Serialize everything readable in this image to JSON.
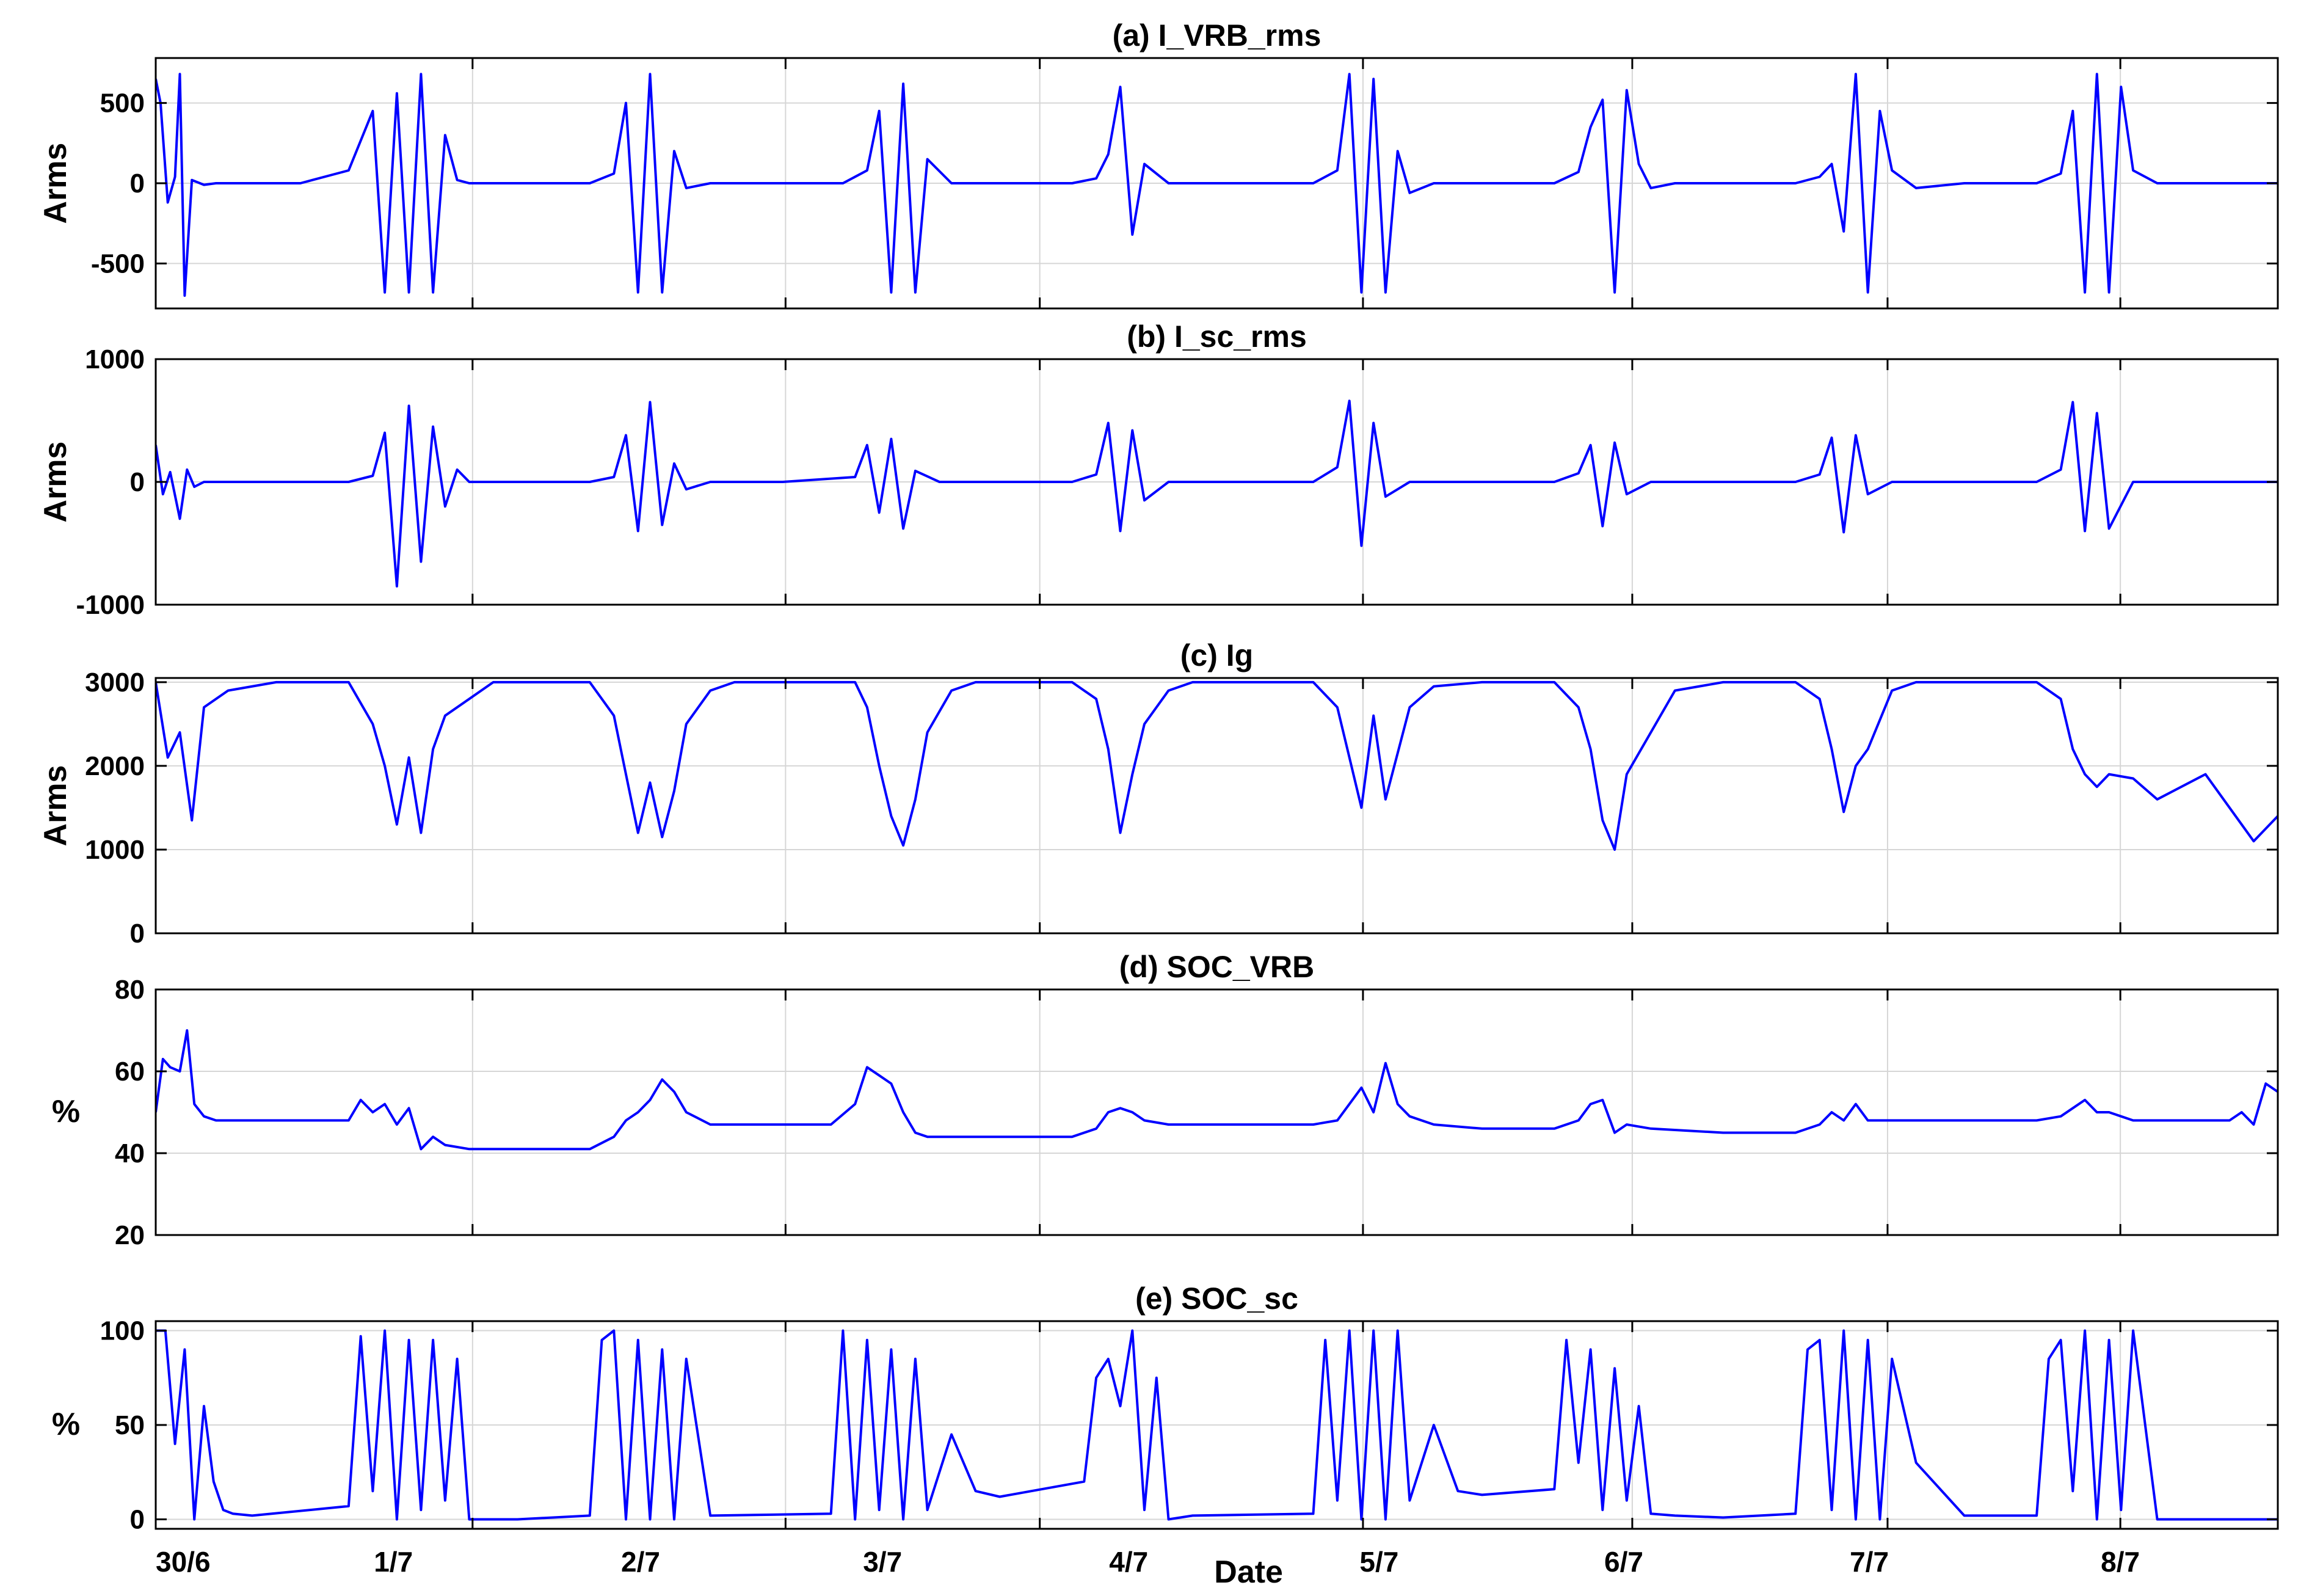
{
  "figure": {
    "xlabel": "Date",
    "x_tick_labels": [
      "30/6",
      "1/7",
      "2/7",
      "3/7",
      "4/7",
      "5/7",
      "6/7",
      "7/7",
      "8/7"
    ]
  },
  "colors": {
    "line": "#0000ff",
    "axes": "#000000",
    "grid": "#d6d6d6",
    "background": "#ffffff"
  },
  "chart_data": [
    {
      "type": "line",
      "title": "(a) I_VRB_rms",
      "ylabel": "Arms",
      "ylim": [
        -780,
        780
      ],
      "yticks": [
        -500,
        0,
        500
      ],
      "xlim": [
        0,
        8.8
      ],
      "grid": true,
      "signal": "oscillating current bursts clipped at about ±680 Arms, near zero between midday bursts",
      "series": [
        {
          "x": [
            0,
            0.02,
            0.05,
            0.08,
            0.1,
            0.12,
            0.15,
            0.2,
            0.25,
            0.3,
            0.4,
            0.6,
            0.8,
            0.9,
            0.95,
            1.0,
            1.05,
            1.1,
            1.15,
            1.2,
            1.25,
            1.3,
            1.4,
            1.6,
            1.8,
            1.9,
            1.95,
            2.0,
            2.05,
            2.1,
            2.15,
            2.2,
            2.3,
            2.5,
            2.85,
            2.95,
            3.0,
            3.05,
            3.1,
            3.15,
            3.2,
            3.3,
            3.6,
            3.8,
            3.9,
            3.95,
            4.0,
            4.05,
            4.1,
            4.2,
            4.5,
            4.8,
            4.9,
            4.95,
            5.0,
            5.05,
            5.1,
            5.15,
            5.2,
            5.3,
            5.5,
            5.8,
            5.9,
            5.95,
            6.0,
            6.05,
            6.1,
            6.15,
            6.2,
            6.3,
            6.5,
            6.8,
            6.9,
            6.95,
            7.0,
            7.05,
            7.1,
            7.15,
            7.2,
            7.3,
            7.5,
            7.8,
            7.9,
            7.95,
            8.0,
            8.05,
            8.1,
            8.15,
            8.2,
            8.3,
            8.4,
            8.5,
            8.6,
            8.65,
            8.7,
            8.75,
            8.8
          ],
          "y": [
            650,
            500,
            -120,
            40,
            680,
            -700,
            20,
            -10,
            0,
            0,
            0,
            0,
            80,
            450,
            -680,
            560,
            -680,
            680,
            -680,
            300,
            20,
            0,
            0,
            0,
            0,
            60,
            500,
            -680,
            680,
            -680,
            200,
            -30,
            0,
            0,
            0,
            80,
            450,
            -680,
            620,
            -680,
            150,
            0,
            0,
            0,
            30,
            180,
            600,
            -320,
            120,
            0,
            0,
            0,
            80,
            680,
            -680,
            650,
            -680,
            200,
            -60,
            0,
            0,
            0,
            70,
            350,
            520,
            -680,
            580,
            120,
            -30,
            0,
            0,
            0,
            40,
            120,
            -300,
            680,
            -680,
            450,
            80,
            -30,
            0,
            0,
            60,
            450,
            -680,
            680,
            -680,
            600,
            80,
            0,
            0,
            0,
            0,
            0,
            0,
            0,
            0
          ]
        }
      ]
    },
    {
      "type": "line",
      "title": "(b) I_sc_rms",
      "ylabel": "Arms",
      "ylim": [
        -1000,
        1000
      ],
      "yticks": [
        -1000,
        0,
        1000
      ],
      "xlim": [
        0,
        8.8
      ],
      "grid": true,
      "signal": "oscillating supercapacitor current with midday bursts of up to about ±650 Arms",
      "series": [
        {
          "x": [
            0,
            0.03,
            0.06,
            0.1,
            0.13,
            0.16,
            0.2,
            0.3,
            0.6,
            0.8,
            0.9,
            0.95,
            1.0,
            1.05,
            1.1,
            1.15,
            1.2,
            1.25,
            1.3,
            1.5,
            1.8,
            1.9,
            1.95,
            2.0,
            2.05,
            2.1,
            2.15,
            2.2,
            2.3,
            2.6,
            2.9,
            2.95,
            3.0,
            3.05,
            3.1,
            3.15,
            3.25,
            3.5,
            3.8,
            3.9,
            3.95,
            4.0,
            4.05,
            4.1,
            4.2,
            4.5,
            4.8,
            4.9,
            4.95,
            5.0,
            5.05,
            5.1,
            5.2,
            5.5,
            5.8,
            5.9,
            5.95,
            6.0,
            6.05,
            6.1,
            6.2,
            6.5,
            6.8,
            6.9,
            6.95,
            7.0,
            7.05,
            7.1,
            7.2,
            7.5,
            7.8,
            7.9,
            7.95,
            8.0,
            8.05,
            8.1,
            8.2,
            8.3,
            8.5,
            8.7,
            8.8
          ],
          "y": [
            300,
            -100,
            80,
            -300,
            100,
            -40,
            0,
            0,
            0,
            0,
            50,
            400,
            -850,
            620,
            -650,
            450,
            -200,
            100,
            0,
            0,
            0,
            40,
            380,
            -400,
            650,
            -350,
            150,
            -60,
            0,
            0,
            40,
            300,
            -250,
            350,
            -380,
            90,
            0,
            0,
            0,
            60,
            480,
            -400,
            420,
            -150,
            0,
            0,
            0,
            120,
            660,
            -520,
            480,
            -120,
            0,
            0,
            0,
            70,
            300,
            -360,
            320,
            -100,
            0,
            0,
            0,
            60,
            360,
            -410,
            380,
            -100,
            0,
            0,
            0,
            100,
            650,
            -400,
            560,
            -380,
            0,
            0,
            0,
            0,
            0
          ]
        }
      ]
    },
    {
      "type": "line",
      "title": "(c) Ig",
      "ylabel": "Arms",
      "ylim": [
        0,
        3050
      ],
      "yticks": [
        0,
        1000,
        2000,
        3000
      ],
      "xlim": [
        0,
        8.8
      ],
      "grid": true,
      "signal": "grid current saturating at 3000 Arms overnight with daily dips to about 1100 Arms",
      "series": [
        {
          "x": [
            0,
            0.05,
            0.1,
            0.15,
            0.2,
            0.3,
            0.5,
            0.8,
            0.9,
            0.95,
            1.0,
            1.05,
            1.1,
            1.15,
            1.2,
            1.3,
            1.4,
            1.6,
            1.8,
            1.9,
            1.95,
            2.0,
            2.05,
            2.1,
            2.15,
            2.2,
            2.3,
            2.4,
            2.6,
            2.9,
            2.95,
            3.0,
            3.05,
            3.1,
            3.15,
            3.2,
            3.3,
            3.4,
            3.6,
            3.8,
            3.9,
            3.95,
            4.0,
            4.05,
            4.1,
            4.2,
            4.3,
            4.5,
            4.8,
            4.9,
            4.95,
            5.0,
            5.05,
            5.1,
            5.2,
            5.3,
            5.5,
            5.8,
            5.9,
            5.95,
            6.0,
            6.05,
            6.1,
            6.2,
            6.3,
            6.5,
            6.8,
            6.9,
            6.95,
            7.0,
            7.05,
            7.1,
            7.2,
            7.3,
            7.5,
            7.8,
            7.9,
            7.95,
            8.0,
            8.05,
            8.1,
            8.2,
            8.3,
            8.5,
            8.7,
            8.8
          ],
          "y": [
            3000,
            2100,
            2400,
            1350,
            2700,
            2900,
            3000,
            3000,
            2500,
            2000,
            1300,
            2100,
            1200,
            2200,
            2600,
            2800,
            3000,
            3000,
            3000,
            2600,
            1900,
            1200,
            1800,
            1150,
            1700,
            2500,
            2900,
            3000,
            3000,
            3000,
            2700,
            2000,
            1400,
            1050,
            1600,
            2400,
            2900,
            3000,
            3000,
            3000,
            2800,
            2200,
            1200,
            1900,
            2500,
            2900,
            3000,
            3000,
            3000,
            2700,
            2100,
            1500,
            2600,
            1600,
            2700,
            2950,
            3000,
            3000,
            2700,
            2200,
            1350,
            1000,
            1900,
            2400,
            2900,
            3000,
            3000,
            2800,
            2200,
            1450,
            2000,
            2200,
            2900,
            3000,
            3000,
            3000,
            2800,
            2200,
            1900,
            1750,
            1900,
            1850,
            1600,
            1900,
            1100,
            1400
          ]
        }
      ]
    },
    {
      "type": "line",
      "title": "(d) SOC_VRB",
      "ylabel": "%",
      "ylim": [
        20,
        80
      ],
      "yticks": [
        20,
        40,
        60,
        80
      ],
      "xlim": [
        0,
        8.8
      ],
      "grid": true,
      "signal": "battery state of charge settling between about 42% and 62%",
      "series": [
        {
          "x": [
            0,
            0.03,
            0.06,
            0.1,
            0.13,
            0.16,
            0.2,
            0.25,
            0.3,
            0.5,
            0.8,
            0.85,
            0.9,
            0.95,
            1.0,
            1.05,
            1.1,
            1.15,
            1.2,
            1.3,
            1.5,
            1.8,
            1.9,
            1.95,
            2.0,
            2.05,
            2.1,
            2.15,
            2.2,
            2.3,
            2.5,
            2.8,
            2.9,
            2.95,
            3.0,
            3.05,
            3.1,
            3.15,
            3.2,
            3.3,
            3.5,
            3.8,
            3.9,
            3.95,
            4.0,
            4.05,
            4.1,
            4.2,
            4.5,
            4.8,
            4.9,
            4.95,
            5.0,
            5.05,
            5.1,
            5.15,
            5.2,
            5.3,
            5.5,
            5.8,
            5.9,
            5.95,
            6.0,
            6.05,
            6.1,
            6.2,
            6.5,
            6.8,
            6.9,
            6.95,
            7.0,
            7.05,
            7.1,
            7.2,
            7.5,
            7.8,
            7.9,
            7.95,
            8.0,
            8.05,
            8.1,
            8.15,
            8.2,
            8.3,
            8.5,
            8.6,
            8.65,
            8.7,
            8.75,
            8.8
          ],
          "y": [
            50,
            63,
            61,
            60,
            70,
            52,
            49,
            48,
            48,
            48,
            48,
            53,
            50,
            52,
            47,
            51,
            41,
            44,
            42,
            41,
            41,
            41,
            44,
            48,
            50,
            53,
            58,
            55,
            50,
            47,
            47,
            47,
            52,
            61,
            59,
            57,
            50,
            45,
            44,
            44,
            44,
            44,
            46,
            50,
            51,
            50,
            48,
            47,
            47,
            47,
            48,
            52,
            56,
            50,
            62,
            52,
            49,
            47,
            46,
            46,
            48,
            52,
            53,
            45,
            47,
            46,
            45,
            45,
            47,
            50,
            48,
            52,
            48,
            48,
            48,
            48,
            49,
            51,
            53,
            50,
            50,
            49,
            48,
            48,
            48,
            48,
            50,
            47,
            57,
            55
          ]
        }
      ]
    },
    {
      "type": "line",
      "title": "(e) SOC_sc",
      "ylabel": "%",
      "ylim": [
        -5,
        105
      ],
      "yticks": [
        0,
        50,
        100
      ],
      "xlim": [
        0,
        8.8
      ],
      "grid": true,
      "signal": "supercapacitor state of charge swinging between 0% and 100% during daily cycles",
      "series": [
        {
          "x": [
            0,
            0.04,
            0.08,
            0.12,
            0.16,
            0.2,
            0.24,
            0.28,
            0.32,
            0.4,
            0.8,
            0.85,
            0.9,
            0.95,
            1.0,
            1.05,
            1.1,
            1.15,
            1.2,
            1.25,
            1.3,
            1.5,
            1.8,
            1.85,
            1.9,
            1.95,
            2.0,
            2.05,
            2.1,
            2.15,
            2.2,
            2.3,
            2.8,
            2.85,
            2.9,
            2.95,
            3.0,
            3.05,
            3.1,
            3.15,
            3.2,
            3.3,
            3.4,
            3.5,
            3.85,
            3.9,
            3.95,
            4.0,
            4.05,
            4.1,
            4.15,
            4.2,
            4.3,
            4.8,
            4.85,
            4.9,
            4.95,
            5.0,
            5.05,
            5.1,
            5.15,
            5.2,
            5.3,
            5.4,
            5.5,
            5.8,
            5.85,
            5.9,
            5.95,
            6.0,
            6.05,
            6.1,
            6.15,
            6.2,
            6.3,
            6.5,
            6.8,
            6.85,
            6.9,
            6.95,
            7.0,
            7.05,
            7.1,
            7.15,
            7.2,
            7.3,
            7.5,
            7.8,
            7.85,
            7.9,
            7.95,
            8.0,
            8.05,
            8.1,
            8.15,
            8.2,
            8.3,
            8.5,
            8.7,
            8.75,
            8.8
          ],
          "y": [
            100,
            100,
            40,
            90,
            0,
            60,
            20,
            5,
            3,
            2,
            7,
            97,
            15,
            100,
            0,
            95,
            5,
            95,
            10,
            85,
            0,
            0,
            2,
            95,
            100,
            0,
            95,
            0,
            90,
            0,
            85,
            2,
            3,
            100,
            0,
            95,
            5,
            90,
            0,
            85,
            5,
            45,
            15,
            12,
            20,
            75,
            85,
            60,
            100,
            5,
            75,
            0,
            2,
            3,
            95,
            10,
            100,
            0,
            100,
            0,
            100,
            10,
            50,
            15,
            13,
            16,
            95,
            30,
            90,
            5,
            80,
            10,
            60,
            3,
            2,
            1,
            3,
            90,
            95,
            5,
            100,
            0,
            95,
            0,
            85,
            30,
            2,
            2,
            85,
            95,
            15,
            100,
            0,
            95,
            5,
            100,
            0,
            0,
            0,
            0,
            0
          ]
        }
      ]
    }
  ]
}
